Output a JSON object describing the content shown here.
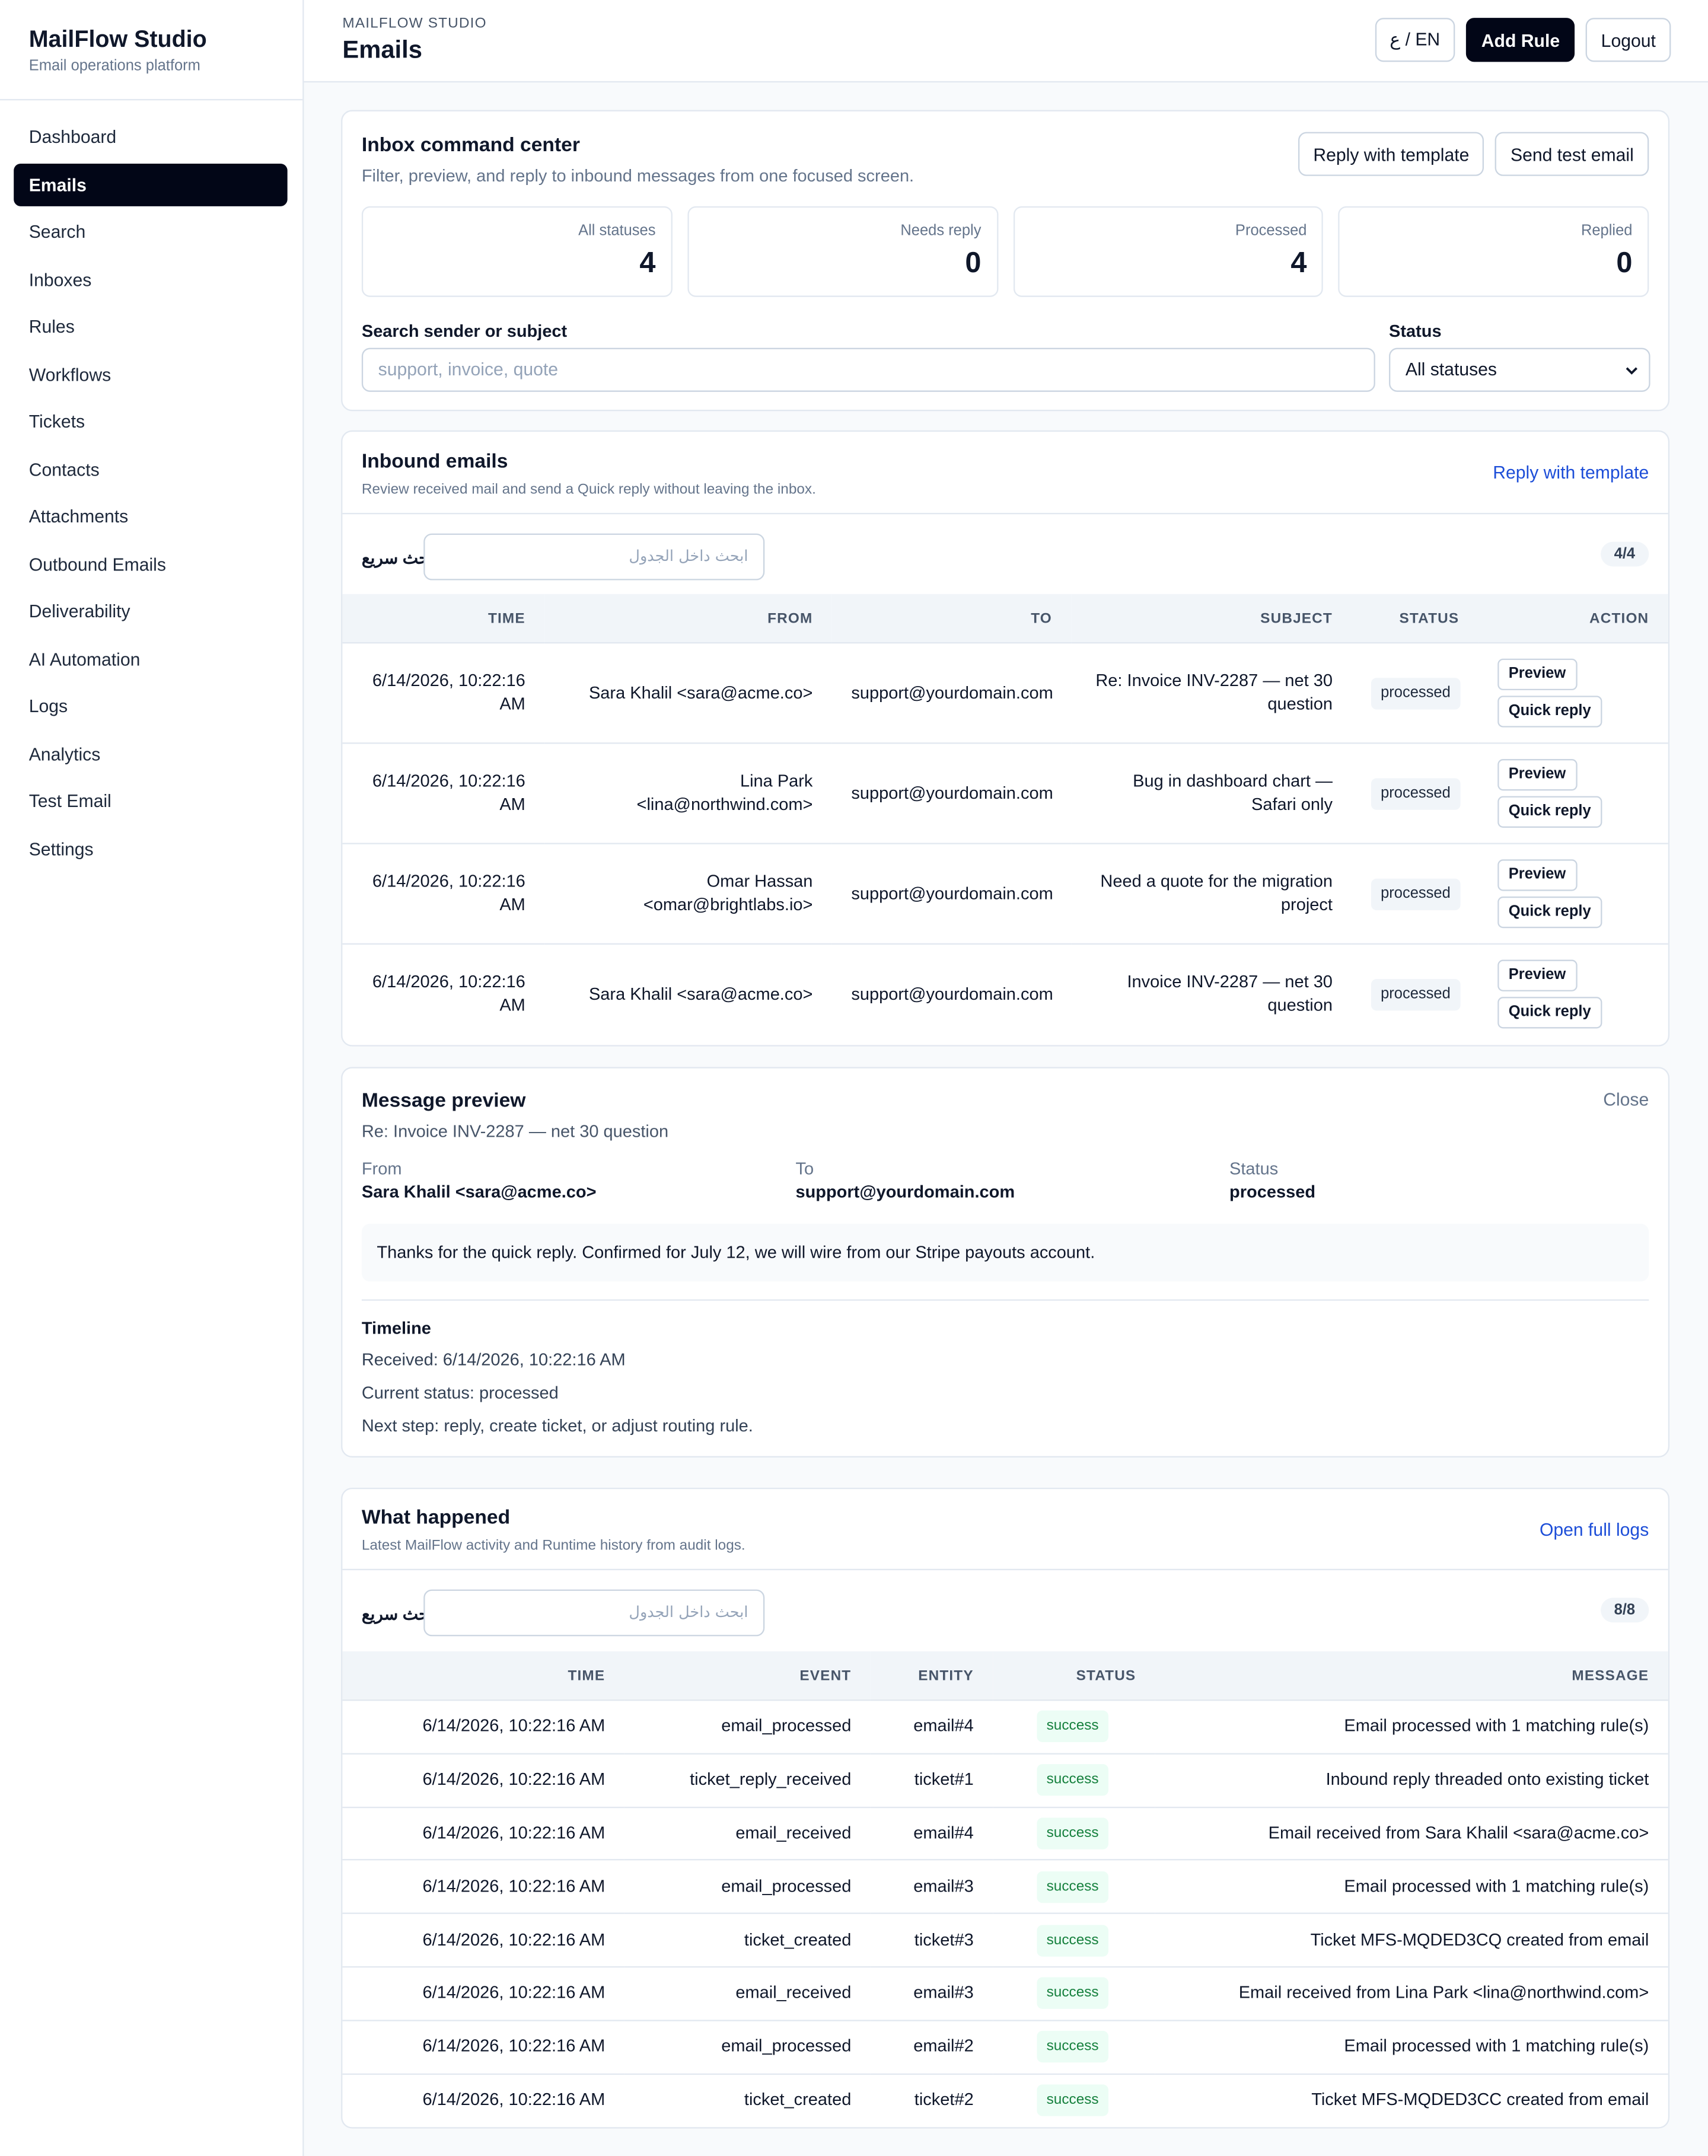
{
  "sidebar": {
    "brand": "MailFlow Studio",
    "tagline": "Email operations platform",
    "active": 1,
    "nav": [
      "Dashboard",
      "Emails",
      "Search",
      "Inboxes",
      "Rules",
      "Workflows",
      "Tickets",
      "Contacts",
      "Attachments",
      "Outbound Emails",
      "Deliverability",
      "AI Automation",
      "Logs",
      "Analytics",
      "Test Email",
      "Settings"
    ]
  },
  "header": {
    "eyebrow": "MAILFLOW STUDIO",
    "title": "Emails",
    "buttons": [
      "ع / EN",
      "Add Rule",
      "Logout"
    ]
  },
  "command_center": {
    "title": "Inbox command center",
    "subtitle": "Filter, preview, and reply to inbound messages from one focused screen.",
    "buttons": [
      "Reply with template",
      "Send test email"
    ],
    "stats": [
      {
        "label": "All statuses",
        "value": 4
      },
      {
        "label": "Needs reply",
        "value": 0
      },
      {
        "label": "Processed",
        "value": 4
      },
      {
        "label": "Replied",
        "value": 0
      }
    ],
    "search_label": "Search sender or subject",
    "search_placeholder": "support, invoice, quote",
    "status_label": "Status",
    "status_value": "All statuses"
  },
  "inbound": {
    "title": "Inbound emails",
    "subtitle": "Review received mail and send a Quick reply without leaving the inbox.",
    "link": "Reply with template",
    "quick_search_label": "بحث سريع",
    "quick_search_placeholder": "ابحث داخل الجدول",
    "count": "4/4",
    "columns": [
      "TIME",
      "FROM",
      "TO",
      "SUBJECT",
      "STATUS",
      "ACTION"
    ],
    "actions": [
      "Preview",
      "Quick reply"
    ],
    "rows": [
      [
        "6/14/2026, 10:22:16 AM",
        "Sara Khalil <sara@acme.co>",
        "support@yourdomain.com",
        "Re: Invoice INV-2287 — net 30 question",
        "processed"
      ],
      [
        "6/14/2026, 10:22:16 AM",
        "Lina Park <lina@northwind.com>",
        "support@yourdomain.com",
        "Bug in dashboard chart — Safari only",
        "processed"
      ],
      [
        "6/14/2026, 10:22:16 AM",
        "Omar Hassan <omar@brightlabs.io>",
        "support@yourdomain.com",
        "Need a quote for the migration project",
        "processed"
      ],
      [
        "6/14/2026, 10:22:16 AM",
        "Sara Khalil <sara@acme.co>",
        "support@yourdomain.com",
        "Invoice INV-2287 — net 30 question",
        "processed"
      ]
    ]
  },
  "preview": {
    "title": "Message preview",
    "close": "Close",
    "subject": "Re: Invoice INV-2287 — net 30 question",
    "fields": [
      {
        "label": "From",
        "value": "Sara Khalil <sara@acme.co>"
      },
      {
        "label": "To",
        "value": "support@yourdomain.com"
      },
      {
        "label": "Status",
        "value": "processed"
      }
    ],
    "body": "Thanks for the quick reply. Confirmed for July 12, we will wire from our Stripe payouts account.",
    "timeline_title": "Timeline",
    "timeline": [
      "Received: 6/14/2026, 10:22:16 AM",
      "Current status: processed",
      "Next step: reply, create ticket, or adjust routing rule."
    ]
  },
  "activity": {
    "title": "What happened",
    "subtitle": "Latest MailFlow activity and Runtime history from audit logs.",
    "link": "Open full logs",
    "quick_search_label": "بحث سريع",
    "quick_search_placeholder": "ابحث داخل الجدول",
    "count": "8/8",
    "columns": [
      "TIME",
      "EVENT",
      "ENTITY",
      "STATUS",
      "MESSAGE"
    ],
    "rows": [
      [
        "6/14/2026, 10:22:16 AM",
        "email_processed",
        "email#4",
        "success",
        "Email processed with 1 matching rule(s)"
      ],
      [
        "6/14/2026, 10:22:16 AM",
        "ticket_reply_received",
        "ticket#1",
        "success",
        "Inbound reply threaded onto existing ticket"
      ],
      [
        "6/14/2026, 10:22:16 AM",
        "email_received",
        "email#4",
        "success",
        "Email received from Sara Khalil <sara@acme.co>"
      ],
      [
        "6/14/2026, 10:22:16 AM",
        "email_processed",
        "email#3",
        "success",
        "Email processed with 1 matching rule(s)"
      ],
      [
        "6/14/2026, 10:22:16 AM",
        "ticket_created",
        "ticket#3",
        "success",
        "Ticket MFS-MQDED3CQ created from email"
      ],
      [
        "6/14/2026, 10:22:16 AM",
        "email_received",
        "email#3",
        "success",
        "Email received from Lina Park <lina@northwind.com>"
      ],
      [
        "6/14/2026, 10:22:16 AM",
        "email_processed",
        "email#2",
        "success",
        "Email processed with 1 matching rule(s)"
      ],
      [
        "6/14/2026, 10:22:16 AM",
        "ticket_created",
        "ticket#2",
        "success",
        "Ticket MFS-MQDED3CC created from email"
      ]
    ]
  }
}
